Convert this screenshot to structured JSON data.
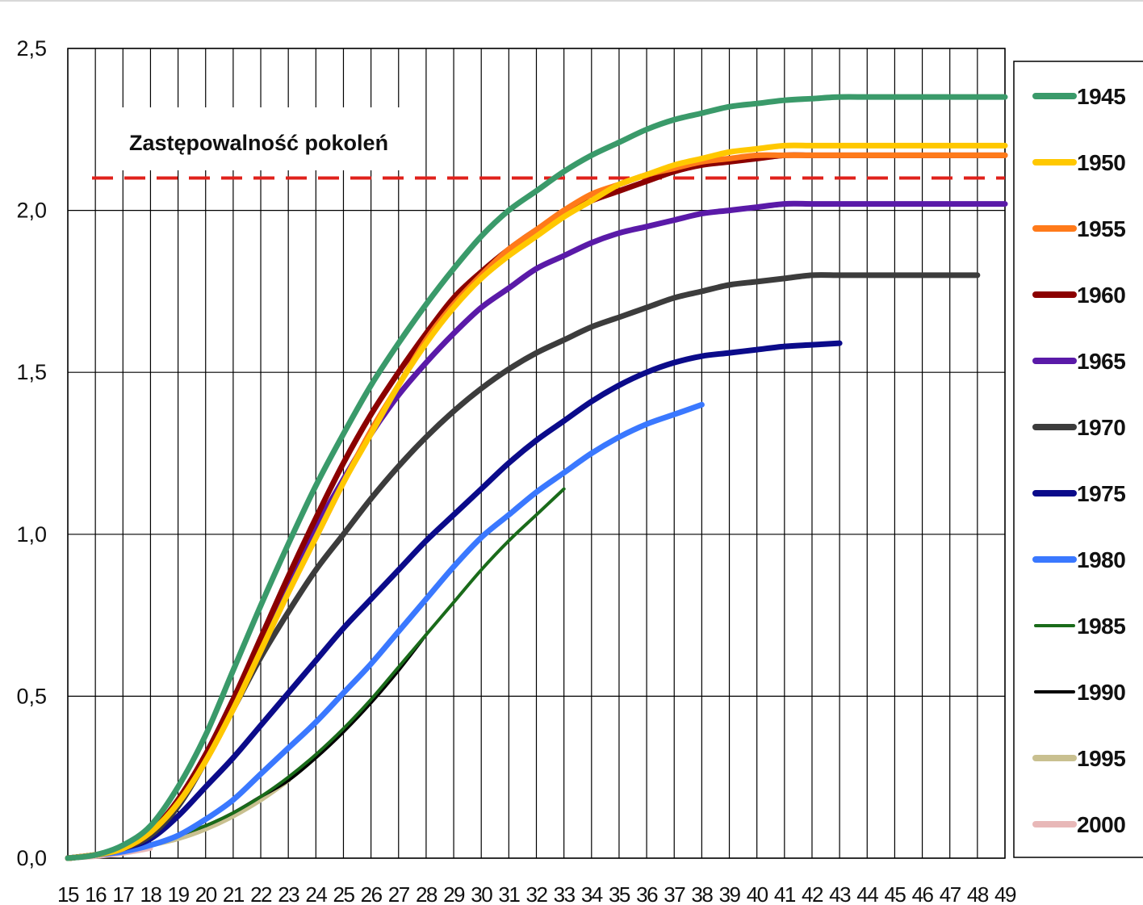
{
  "chart_data": {
    "type": "line",
    "title": "",
    "xlabel": "",
    "ylabel": "",
    "xlim": [
      15,
      49
    ],
    "ylim": [
      0,
      2.5
    ],
    "x_ticks": [
      "15",
      "16",
      "17",
      "18",
      "19",
      "20",
      "21",
      "22",
      "23",
      "24",
      "25",
      "26",
      "27",
      "28",
      "29",
      "30",
      "31",
      "32",
      "33",
      "34",
      "35",
      "36",
      "37",
      "38",
      "39",
      "40",
      "41",
      "42",
      "43",
      "44",
      "45",
      "46",
      "47",
      "48",
      "49"
    ],
    "y_ticks": [
      "0,0",
      "0,5",
      "1,0",
      "1,5",
      "2,0",
      "2,5"
    ],
    "grid": "vertical lines at every age, horizontal lines at every 0.5",
    "legend_position": "right",
    "reference_line": {
      "value": 2.1,
      "label": "Zastępowalność pokoleń",
      "color": "#e0211b",
      "style": "dashed"
    },
    "series": [
      {
        "name": "1945",
        "color": "#3a9a6a",
        "x": [
          15,
          16,
          17,
          18,
          19,
          20,
          21,
          22,
          23,
          24,
          25,
          26,
          27,
          28,
          29,
          30,
          31,
          32,
          33,
          34,
          35,
          36,
          37,
          38,
          39,
          40,
          41,
          42,
          43,
          44,
          45,
          46,
          47,
          48,
          49
        ],
        "values": [
          0,
          0.01,
          0.04,
          0.1,
          0.22,
          0.38,
          0.58,
          0.78,
          0.97,
          1.15,
          1.31,
          1.46,
          1.59,
          1.71,
          1.82,
          1.92,
          2.0,
          2.06,
          2.12,
          2.17,
          2.21,
          2.25,
          2.28,
          2.3,
          2.32,
          2.33,
          2.34,
          2.345,
          2.35,
          2.35,
          2.35,
          2.35,
          2.35,
          2.35,
          2.35
        ]
      },
      {
        "name": "1950",
        "color": "#ffc800",
        "x": [
          15,
          16,
          17,
          18,
          19,
          20,
          21,
          22,
          23,
          24,
          25,
          26,
          27,
          28,
          29,
          30,
          31,
          32,
          33,
          34,
          35,
          36,
          37,
          38,
          39,
          40,
          41,
          42,
          43,
          44,
          45,
          46,
          47,
          48,
          49
        ],
        "values": [
          0,
          0.01,
          0.03,
          0.08,
          0.17,
          0.3,
          0.46,
          0.64,
          0.82,
          0.99,
          1.16,
          1.31,
          1.46,
          1.59,
          1.7,
          1.79,
          1.86,
          1.92,
          1.98,
          2.03,
          2.08,
          2.11,
          2.14,
          2.16,
          2.18,
          2.19,
          2.2,
          2.2,
          2.2,
          2.2,
          2.2,
          2.2,
          2.2,
          2.2,
          2.2
        ]
      },
      {
        "name": "1955",
        "color": "#ff7a1a",
        "x": [
          15,
          16,
          17,
          18,
          19,
          20,
          21,
          22,
          23,
          24,
          25,
          26,
          27,
          28,
          29,
          30,
          31,
          32,
          33,
          34,
          35,
          36,
          37,
          38,
          39,
          40,
          41,
          42,
          43,
          44,
          45,
          46,
          47,
          48,
          49
        ],
        "values": [
          0,
          0.01,
          0.03,
          0.08,
          0.17,
          0.3,
          0.46,
          0.64,
          0.82,
          0.99,
          1.16,
          1.32,
          1.46,
          1.6,
          1.71,
          1.8,
          1.88,
          1.94,
          2.0,
          2.05,
          2.08,
          2.11,
          2.13,
          2.15,
          2.16,
          2.17,
          2.17,
          2.17,
          2.17,
          2.17,
          2.17,
          2.17,
          2.17,
          2.17,
          2.17
        ]
      },
      {
        "name": "1960",
        "color": "#8b0000",
        "x": [
          15,
          16,
          17,
          18,
          19,
          20,
          21,
          22,
          23,
          24,
          25,
          26,
          27,
          28,
          29,
          30,
          31,
          32,
          33,
          34,
          35,
          36,
          37,
          38,
          39,
          40,
          41,
          42,
          43,
          44,
          45,
          46,
          47,
          48,
          49
        ],
        "values": [
          0,
          0.01,
          0.03,
          0.08,
          0.18,
          0.32,
          0.49,
          0.68,
          0.87,
          1.05,
          1.22,
          1.37,
          1.5,
          1.62,
          1.73,
          1.81,
          1.88,
          1.94,
          1.99,
          2.03,
          2.06,
          2.09,
          2.12,
          2.14,
          2.15,
          2.16,
          2.17,
          2.17,
          2.17,
          2.17,
          2.17,
          2.17,
          2.17,
          2.17,
          2.17
        ]
      },
      {
        "name": "1965",
        "color": "#5a1aa8",
        "x": [
          15,
          16,
          17,
          18,
          19,
          20,
          21,
          22,
          23,
          24,
          25,
          26,
          27,
          28,
          29,
          30,
          31,
          32,
          33,
          34,
          35,
          36,
          37,
          38,
          39,
          40,
          41,
          42,
          43,
          44,
          45,
          46,
          47,
          48,
          49
        ],
        "values": [
          0,
          0.01,
          0.03,
          0.08,
          0.18,
          0.32,
          0.49,
          0.67,
          0.85,
          1.02,
          1.17,
          1.31,
          1.43,
          1.53,
          1.62,
          1.7,
          1.76,
          1.82,
          1.86,
          1.9,
          1.93,
          1.95,
          1.97,
          1.99,
          2.0,
          2.01,
          2.02,
          2.02,
          2.02,
          2.02,
          2.02,
          2.02,
          2.02,
          2.02,
          2.02
        ]
      },
      {
        "name": "1970",
        "color": "#3c3c3c",
        "x": [
          15,
          16,
          17,
          18,
          19,
          20,
          21,
          22,
          23,
          24,
          25,
          26,
          27,
          28,
          29,
          30,
          31,
          32,
          33,
          34,
          35,
          36,
          37,
          38,
          39,
          40,
          41,
          42,
          43,
          44,
          45,
          46,
          47,
          48
        ],
        "values": [
          0,
          0.01,
          0.03,
          0.07,
          0.16,
          0.3,
          0.46,
          0.62,
          0.76,
          0.89,
          1.0,
          1.11,
          1.21,
          1.3,
          1.38,
          1.45,
          1.51,
          1.56,
          1.6,
          1.64,
          1.67,
          1.7,
          1.73,
          1.75,
          1.77,
          1.78,
          1.79,
          1.8,
          1.8,
          1.8,
          1.8,
          1.8,
          1.8,
          1.8
        ]
      },
      {
        "name": "1975",
        "color": "#0b0b8a",
        "x": [
          15,
          16,
          17,
          18,
          19,
          20,
          21,
          22,
          23,
          24,
          25,
          26,
          27,
          28,
          29,
          30,
          31,
          32,
          33,
          34,
          35,
          36,
          37,
          38,
          39,
          40,
          41,
          42,
          43
        ],
        "values": [
          0,
          0.01,
          0.03,
          0.06,
          0.13,
          0.22,
          0.31,
          0.41,
          0.51,
          0.61,
          0.71,
          0.8,
          0.89,
          0.98,
          1.06,
          1.14,
          1.22,
          1.29,
          1.35,
          1.41,
          1.46,
          1.5,
          1.53,
          1.55,
          1.56,
          1.57,
          1.58,
          1.585,
          1.59
        ]
      },
      {
        "name": "1980",
        "color": "#3a78ff",
        "x": [
          15,
          16,
          17,
          18,
          19,
          20,
          21,
          22,
          23,
          24,
          25,
          26,
          27,
          28,
          29,
          30,
          31,
          32,
          33,
          34,
          35,
          36,
          37,
          38
        ],
        "values": [
          0,
          0.01,
          0.02,
          0.04,
          0.07,
          0.12,
          0.18,
          0.26,
          0.34,
          0.42,
          0.51,
          0.6,
          0.7,
          0.8,
          0.9,
          0.99,
          1.06,
          1.13,
          1.19,
          1.25,
          1.3,
          1.34,
          1.37,
          1.4
        ]
      },
      {
        "name": "1985",
        "color": "#1a6b1a",
        "x": [
          15,
          16,
          17,
          18,
          19,
          20,
          21,
          22,
          23,
          24,
          25,
          26,
          27,
          28,
          29,
          30,
          31,
          32,
          33
        ],
        "values": [
          0,
          0.01,
          0.02,
          0.04,
          0.07,
          0.1,
          0.14,
          0.19,
          0.25,
          0.32,
          0.4,
          0.49,
          0.59,
          0.69,
          0.79,
          0.89,
          0.98,
          1.06,
          1.14
        ]
      },
      {
        "name": "1990",
        "color": "#000000",
        "x": [
          15,
          16,
          17,
          18,
          19,
          20,
          21,
          22,
          23,
          24,
          25,
          26,
          27,
          28
        ],
        "values": [
          0,
          0.01,
          0.02,
          0.04,
          0.07,
          0.1,
          0.14,
          0.19,
          0.24,
          0.31,
          0.39,
          0.48,
          0.58,
          0.69
        ]
      },
      {
        "name": "1995",
        "color": "#c9c090",
        "x": [
          15,
          16,
          17,
          18,
          19,
          20,
          21,
          22,
          23
        ],
        "values": [
          0,
          0.01,
          0.02,
          0.04,
          0.06,
          0.09,
          0.13,
          0.18,
          0.24
        ]
      },
      {
        "name": "2000",
        "color": "#e8b8b8",
        "x": [
          15,
          16,
          17,
          18
        ],
        "values": [
          0,
          0.005,
          0.015,
          0.03
        ]
      }
    ]
  }
}
